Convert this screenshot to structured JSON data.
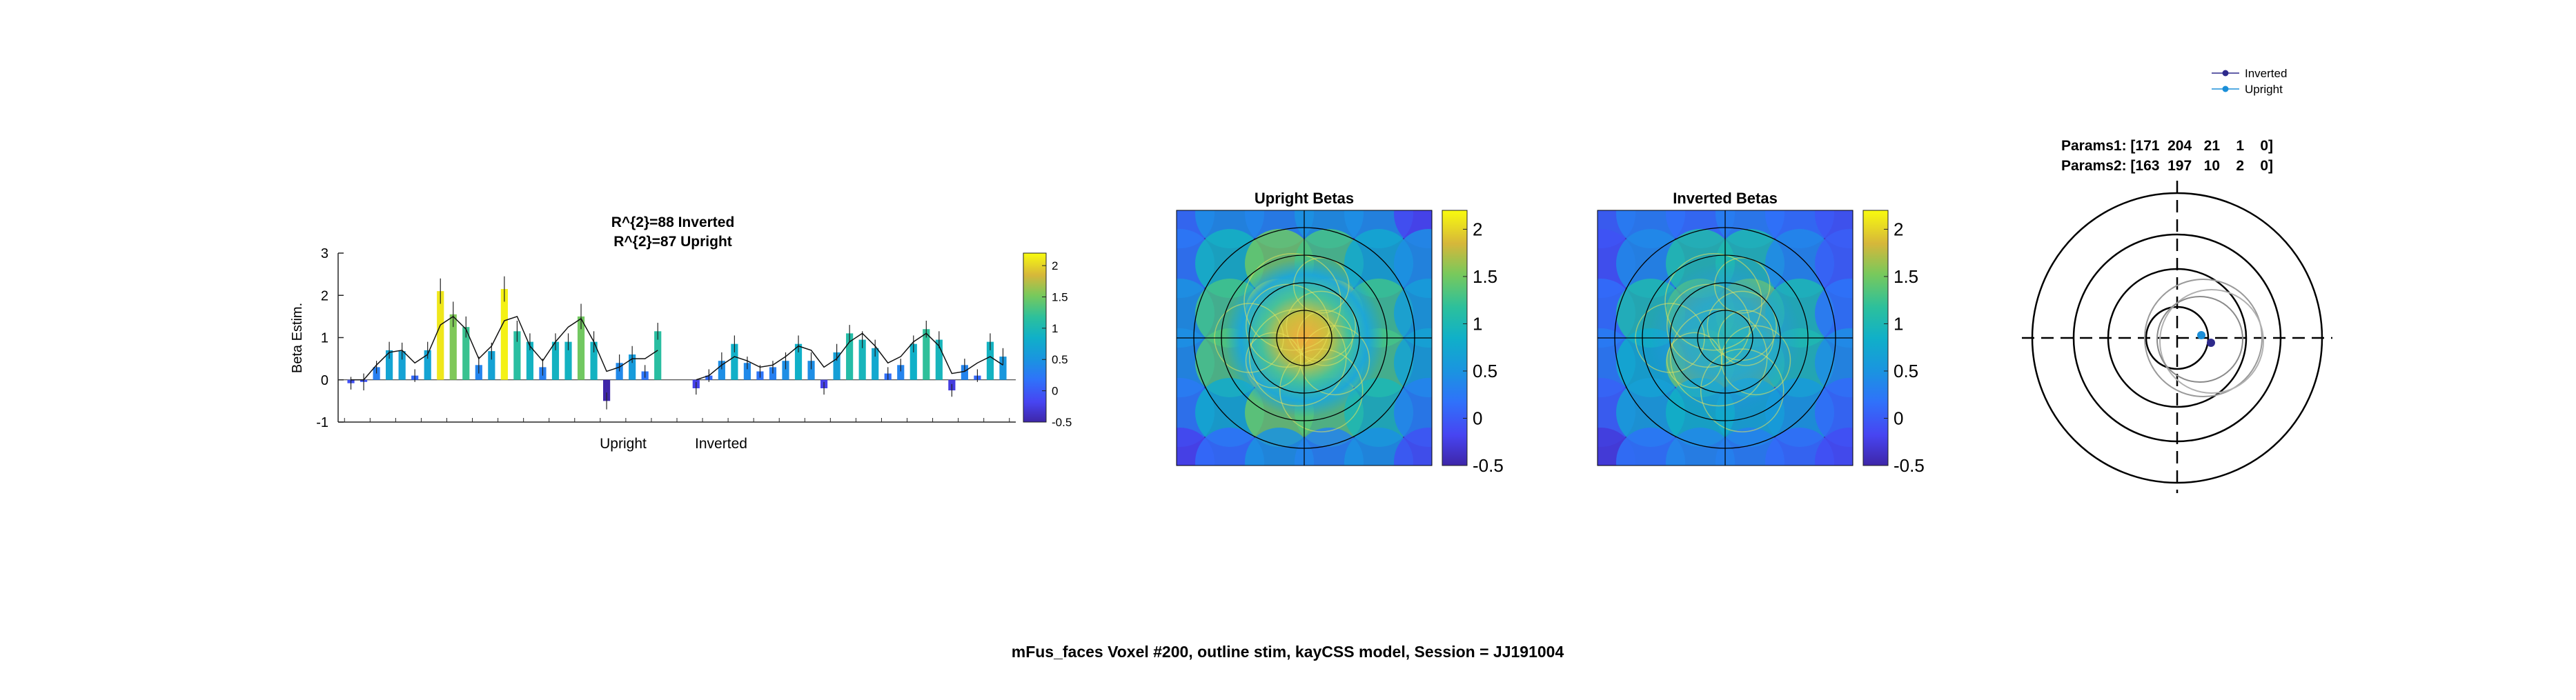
{
  "figure": {
    "suptitle": "mFus_faces Voxel #200, outline stim, kayCSS model, Session = JJ191004"
  },
  "chart_data": [
    {
      "type": "bar",
      "title_line1": "R^{2}=88 Inverted",
      "title_line2": "R^{2}=87 Upright",
      "ylabel": "Beta Estim.",
      "ylim": [
        -1,
        3
      ],
      "yticks": [
        "-1",
        "0",
        "1",
        "2",
        "3"
      ],
      "group_labels": [
        "Upright",
        "Inverted"
      ],
      "colormap": "parula",
      "clim": [
        -0.5,
        2.2
      ],
      "colorbar_ticks": [
        "2",
        "1.5",
        "1",
        "0.5",
        "0",
        "-0.5"
      ],
      "colorbar_tick_values": [
        2,
        1.5,
        1,
        0.5,
        0,
        -0.5
      ],
      "series": [
        {
          "values": [
            -0.08,
            -0.05,
            0.3,
            0.7,
            0.68,
            0.1,
            0.7,
            2.1,
            1.55,
            1.25,
            0.35,
            0.68,
            2.15,
            1.15,
            0.9,
            0.3,
            0.9,
            0.9,
            1.5,
            0.9,
            -0.5,
            0.4,
            0.6,
            0.2,
            1.15
          ],
          "errors": [
            0.15,
            0.2,
            0.15,
            0.2,
            0.2,
            0.15,
            0.2,
            0.3,
            0.3,
            0.25,
            0.2,
            0.2,
            0.3,
            0.25,
            0.2,
            0.2,
            0.2,
            0.2,
            0.3,
            0.25,
            0.2,
            0.2,
            0.2,
            0.15,
            0.2
          ],
          "model": [
            0.0,
            0.0,
            0.35,
            0.65,
            0.7,
            0.4,
            0.6,
            1.3,
            1.5,
            1.2,
            0.5,
            0.8,
            1.4,
            1.5,
            0.8,
            0.45,
            0.9,
            1.25,
            1.45,
            0.9,
            0.2,
            0.3,
            0.5,
            0.5,
            0.7
          ]
        },
        {
          "values": [
            -0.2,
            0.1,
            0.45,
            0.85,
            0.4,
            0.2,
            0.3,
            0.45,
            0.85,
            0.45,
            -0.2,
            0.65,
            1.1,
            0.95,
            0.75,
            0.15,
            0.35,
            0.85,
            1.2,
            0.95,
            -0.25,
            0.35,
            0.1,
            0.9,
            0.55
          ],
          "errors": [
            0.15,
            0.15,
            0.2,
            0.2,
            0.15,
            0.15,
            0.15,
            0.2,
            0.2,
            0.2,
            0.15,
            0.2,
            0.2,
            0.2,
            0.2,
            0.15,
            0.15,
            0.2,
            0.2,
            0.2,
            0.15,
            0.15,
            0.15,
            0.2,
            0.2
          ],
          "model": [
            0.0,
            0.1,
            0.35,
            0.55,
            0.45,
            0.3,
            0.35,
            0.55,
            0.8,
            0.7,
            0.3,
            0.5,
            0.9,
            1.1,
            0.8,
            0.4,
            0.55,
            0.9,
            1.1,
            0.8,
            0.15,
            0.2,
            0.4,
            0.55,
            0.35
          ]
        }
      ]
    },
    {
      "type": "heatmap",
      "title": "Upright Betas",
      "clim": [
        -0.5,
        2.2
      ],
      "colorbar_ticks": [
        "2",
        "1.5",
        "1",
        "0.5",
        "0",
        "-0.5"
      ],
      "colorbar_tick_values": [
        2,
        1.5,
        1,
        0.5,
        0,
        -0.5
      ]
    },
    {
      "type": "heatmap",
      "title": "Inverted Betas",
      "clim": [
        -0.5,
        2.2
      ],
      "colorbar_ticks": [
        "2",
        "1.5",
        "1",
        "0.5",
        "0",
        "-0.5"
      ],
      "colorbar_tick_values": [
        2,
        1.5,
        1,
        0.5,
        0,
        -0.5
      ]
    },
    {
      "type": "scatter",
      "params1_label": "Params1: [171  204   21    1    0]",
      "params2_label": "Params2: [163  197   10    2    0]",
      "legend": [
        "Inverted",
        "Upright"
      ],
      "legend_colors": [
        "#2e2a8c",
        "#1b8fd8"
      ],
      "legend_position": "top-right"
    }
  ]
}
